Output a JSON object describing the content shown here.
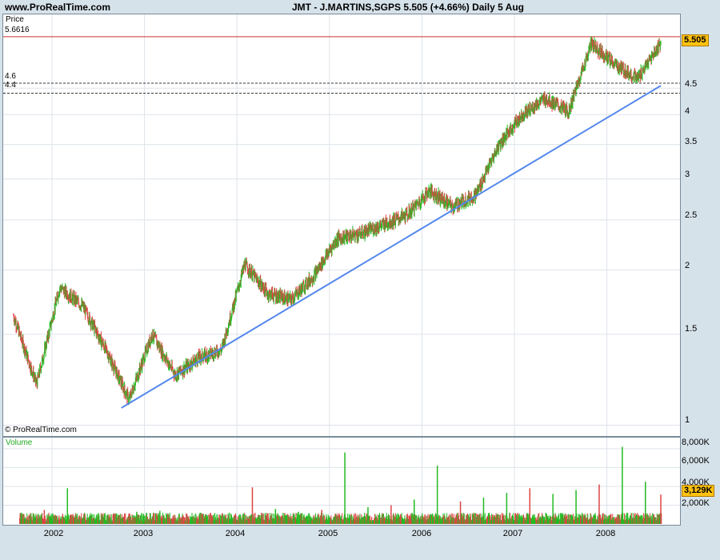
{
  "header": {
    "site": "www.ProRealTime.com",
    "title": "JMT - J.MARTINS,SGPS    5.505 (+4.66%)    Daily  5 Aug"
  },
  "price_panel": {
    "label": "Price",
    "copyright": "© ProRealTime.com",
    "y_ticks": [
      "5.505",
      "4.5",
      "4",
      "3.5",
      "3",
      "2.5",
      "2",
      "1.5",
      "1"
    ],
    "last_price": "5.505",
    "resistance_label": "5.6616",
    "level_46": "4.6",
    "level_44": "4.4"
  },
  "volume_panel": {
    "label": "Volume",
    "y_ticks": [
      "8,000K",
      "6,000K",
      "4,000K",
      "2,000K"
    ],
    "last_volume": "3,129K"
  },
  "x_ticks": [
    "2002",
    "2003",
    "2004",
    "2005",
    "2006",
    "2007",
    "2008"
  ],
  "colors": {
    "up": "#22bb22",
    "down": "#dd4444",
    "trendline": "#5588ee",
    "resistance": "#cc3333",
    "badge": "#ffc20e"
  },
  "chart_data": [
    {
      "type": "line",
      "title": "JMT - J.MARTINS,SGPS",
      "ylabel": "Price",
      "y_scale": "log",
      "ylim": [
        0.97,
        6.1
      ],
      "x": [
        "2001-08",
        "2001-11",
        "2002-02",
        "2002-05",
        "2002-08",
        "2002-11",
        "2003-02",
        "2003-05",
        "2003-08",
        "2003-11",
        "2004-02",
        "2004-05",
        "2004-08",
        "2004-11",
        "2005-02",
        "2005-05",
        "2005-08",
        "2005-11",
        "2006-02",
        "2006-05",
        "2006-08",
        "2006-11",
        "2007-02",
        "2007-05",
        "2007-08",
        "2007-11",
        "2008-02",
        "2008-05",
        "2008-08"
      ],
      "series": [
        {
          "values": [
            1.63,
            1.2,
            1.85,
            1.7,
            1.4,
            1.12,
            1.5,
            1.25,
            1.35,
            1.4,
            2.05,
            1.8,
            1.75,
            1.95,
            2.3,
            2.35,
            2.45,
            2.55,
            2.85,
            2.65,
            2.8,
            3.5,
            4.0,
            4.3,
            4.05,
            5.5,
            5.0,
            4.7,
            5.505
          ]
        }
      ],
      "annotations": {
        "horizontal_levels": [
          5.6616,
          4.6,
          4.4
        ],
        "trendline": {
          "from": [
            "2002-10",
            1.08
          ],
          "to": [
            "2008-08",
            4.55
          ]
        }
      }
    },
    {
      "type": "bar",
      "title": "Volume",
      "ylim": [
        0,
        8500
      ],
      "y_unit": "K",
      "x": [
        "2001-09",
        "2001-12",
        "2002-03",
        "2002-06",
        "2002-09",
        "2002-12",
        "2003-03",
        "2003-06",
        "2003-09",
        "2003-12",
        "2004-03",
        "2004-06",
        "2004-09",
        "2004-12",
        "2005-03",
        "2005-06",
        "2005-09",
        "2005-12",
        "2006-03",
        "2006-06",
        "2006-09",
        "2006-12",
        "2007-03",
        "2007-06",
        "2007-09",
        "2007-12",
        "2008-03",
        "2008-06",
        "2008-08"
      ],
      "values": [
        1200,
        1500,
        3800,
        900,
        1100,
        1300,
        1400,
        900,
        1000,
        1200,
        3900,
        1600,
        1300,
        1500,
        7600,
        1800,
        2000,
        2600,
        6200,
        2400,
        2800,
        3300,
        3800,
        3200,
        3600,
        4200,
        8200,
        4500,
        3129
      ]
    }
  ]
}
